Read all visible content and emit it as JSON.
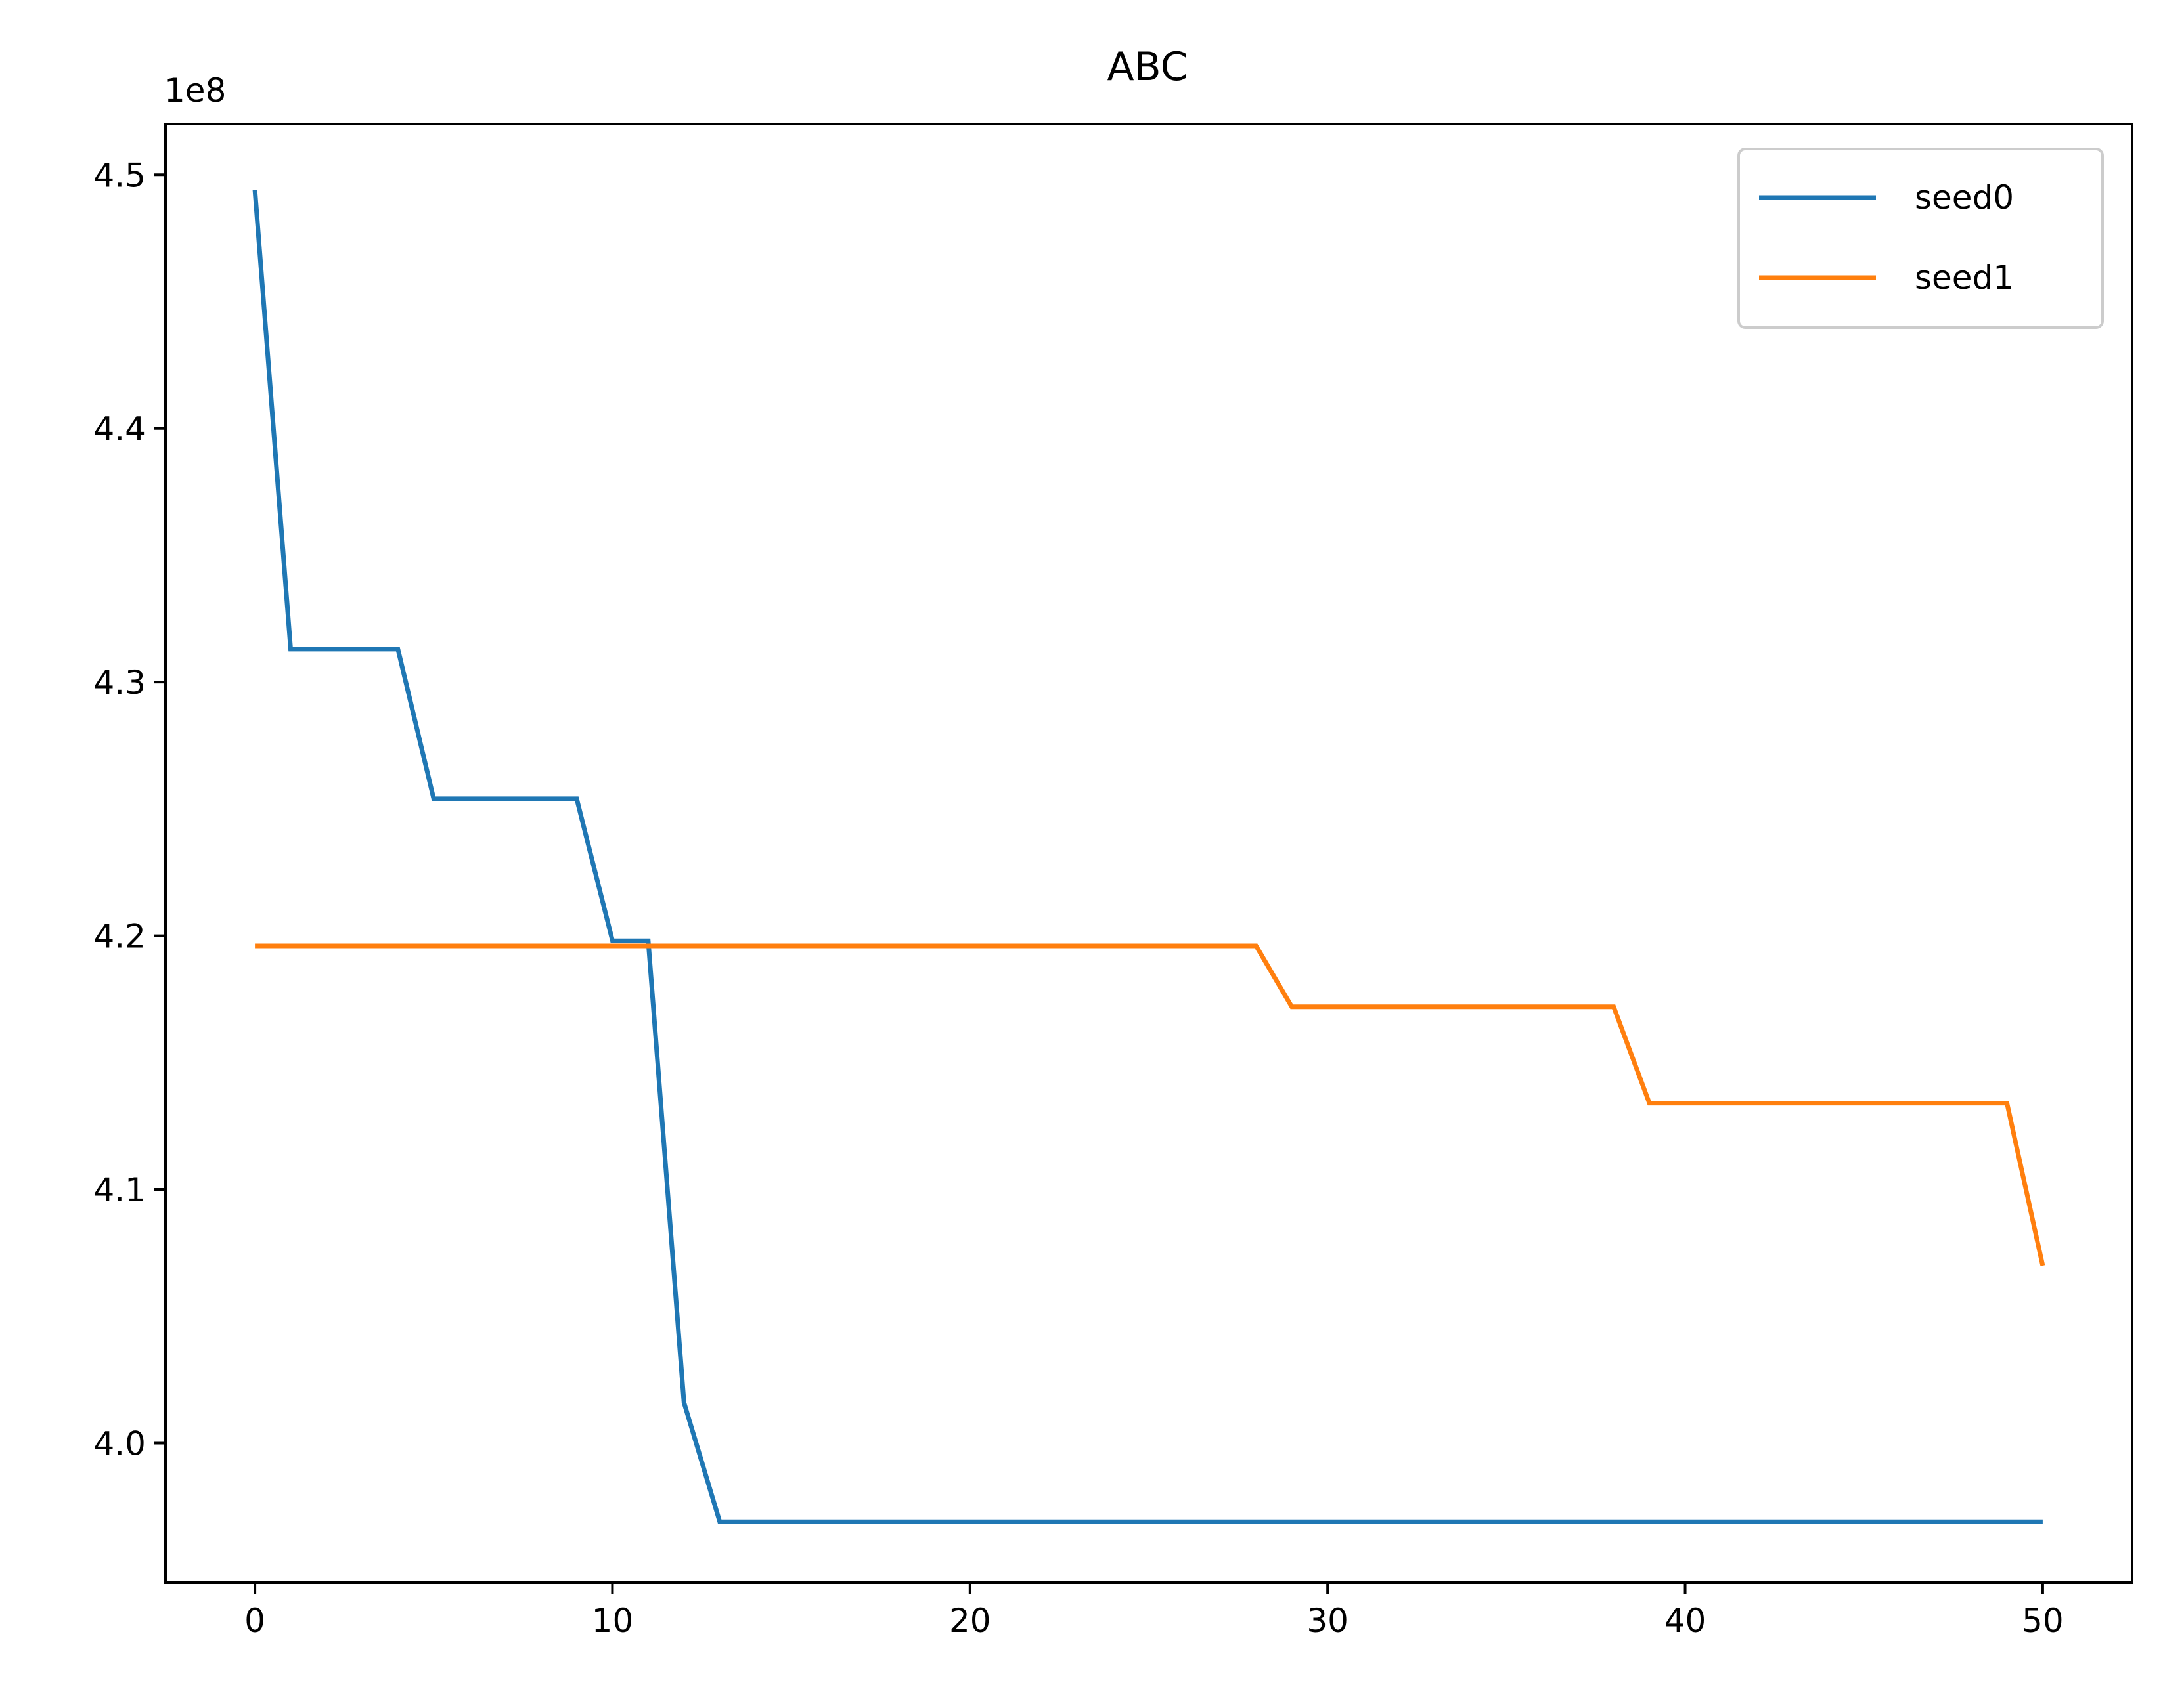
{
  "chart_data": {
    "type": "line",
    "title": "ABC",
    "xlabel": "",
    "ylabel": "",
    "y_offset_label": "1e8",
    "y_scale": 100000000,
    "xlim": [
      -2.5,
      52.5
    ],
    "ylim": [
      394.5,
      452.0
    ],
    "x_ticks": [
      0,
      10,
      20,
      30,
      40,
      50
    ],
    "x_tick_labels": [
      "0",
      "10",
      "20",
      "30",
      "40",
      "50"
    ],
    "y_ticks": [
      400,
      410,
      420,
      430,
      440,
      450
    ],
    "y_tick_labels": [
      "4.0",
      "4.1",
      "4.2",
      "4.3",
      "4.4",
      "4.5"
    ],
    "grid": false,
    "legend_position": "top-right",
    "x": [
      0,
      1,
      2,
      3,
      4,
      5,
      6,
      7,
      8,
      9,
      10,
      11,
      12,
      13,
      14,
      15,
      16,
      17,
      18,
      19,
      20,
      21,
      22,
      23,
      24,
      25,
      26,
      27,
      28,
      29,
      30,
      31,
      32,
      33,
      34,
      35,
      36,
      37,
      38,
      39,
      40,
      41,
      42,
      43,
      44,
      45,
      46,
      47,
      48,
      49,
      50
    ],
    "series": [
      {
        "name": "seed0",
        "color": "#1f77b4",
        "values": [
          449.4,
          431.3,
          431.3,
          431.3,
          431.3,
          425.4,
          425.4,
          425.4,
          425.4,
          425.4,
          419.8,
          419.8,
          401.6,
          396.9,
          396.9,
          396.9,
          396.9,
          396.9,
          396.9,
          396.9,
          396.9,
          396.9,
          396.9,
          396.9,
          396.9,
          396.9,
          396.9,
          396.9,
          396.9,
          396.9,
          396.9,
          396.9,
          396.9,
          396.9,
          396.9,
          396.9,
          396.9,
          396.9,
          396.9,
          396.9,
          396.9,
          396.9,
          396.9,
          396.9,
          396.9,
          396.9,
          396.9,
          396.9,
          396.9,
          396.9,
          396.9
        ]
      },
      {
        "name": "seed1",
        "color": "#ff7f0e",
        "values": [
          419.6,
          419.6,
          419.6,
          419.6,
          419.6,
          419.6,
          419.6,
          419.6,
          419.6,
          419.6,
          419.6,
          419.6,
          419.6,
          419.6,
          419.6,
          419.6,
          419.6,
          419.6,
          419.6,
          419.6,
          419.6,
          419.6,
          419.6,
          419.6,
          419.6,
          419.6,
          419.6,
          419.6,
          419.6,
          417.2,
          417.2,
          417.2,
          417.2,
          417.2,
          417.2,
          417.2,
          417.2,
          417.2,
          417.2,
          413.4,
          413.4,
          413.4,
          413.4,
          413.4,
          413.4,
          413.4,
          413.4,
          413.4,
          413.4,
          413.4,
          407.0
        ]
      }
    ]
  }
}
